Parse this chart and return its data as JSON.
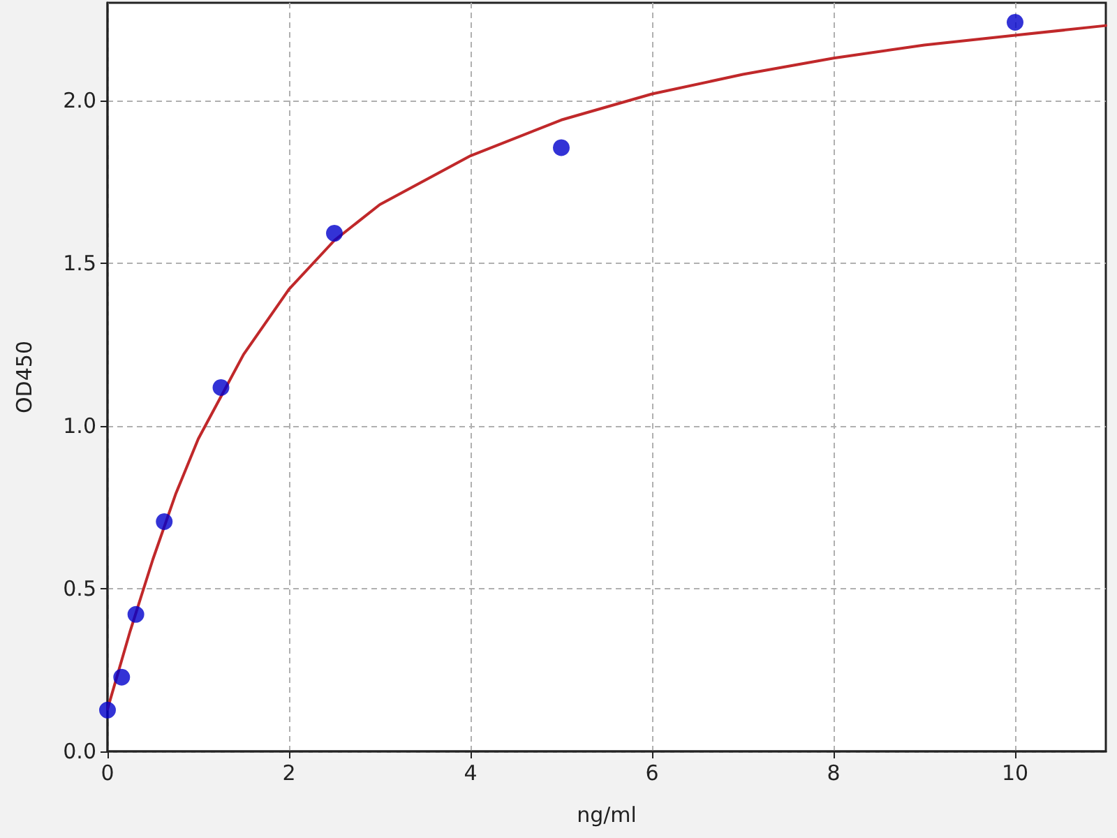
{
  "chart_data": {
    "type": "scatter",
    "xlabel": "ng/ml",
    "ylabel": "OD450",
    "xlim": [
      0,
      11
    ],
    "xticks": [
      0,
      2,
      4,
      6,
      8,
      10
    ],
    "ylim": [
      0,
      2.3
    ],
    "yticks": [
      {
        "value": 0,
        "label": "0.0"
      },
      0.5,
      {
        "value": 1,
        "label": "1.0"
      },
      1.5,
      {
        "value": 2,
        "label": "2.0"
      }
    ],
    "grid": true,
    "series": [
      {
        "type": "line",
        "color": "#c0282a",
        "marker": "none",
        "line_style": "solid",
        "x": [
          0,
          0.25,
          0.5,
          0.75,
          1,
          1.5,
          2,
          2.5,
          3,
          4,
          5,
          6,
          7,
          8,
          9,
          10,
          11
        ],
        "values": [
          0.13,
          0.37,
          0.59,
          0.79,
          0.96,
          1.22,
          1.42,
          1.57,
          1.68,
          1.83,
          1.94,
          2.02,
          2.08,
          2.13,
          2.17,
          2.2,
          2.23
        ]
      },
      {
        "color": "#0000cc",
        "marker": "circle",
        "x": [
          0,
          0.156,
          0.3125,
          0.625,
          1.25,
          2.5,
          5,
          10
        ],
        "values": [
          0.127,
          0.228,
          0.421,
          0.706,
          1.118,
          1.592,
          1.855,
          2.24
        ]
      }
    ]
  }
}
